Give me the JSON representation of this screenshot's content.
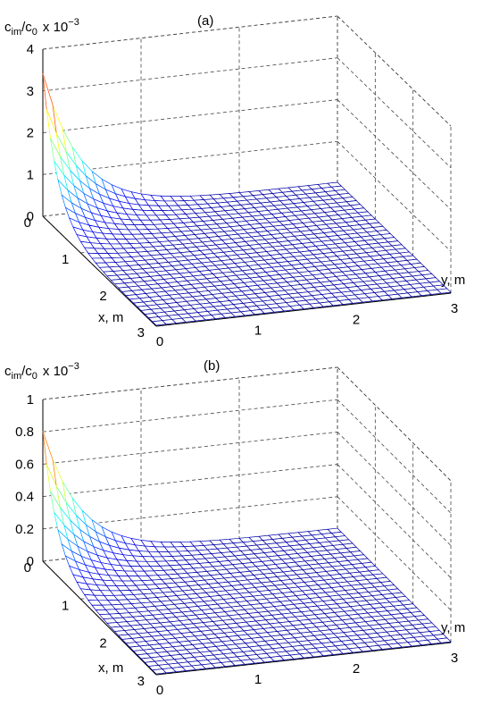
{
  "chart_data": [
    {
      "type": "surface",
      "panel_label": "(a)",
      "zlabel": "c",
      "zlabel_sub": "im",
      "zlabel_mid": "/c",
      "zlabel_sub2": "0",
      "zlabel_scale": "x 10",
      "zlabel_exp": "−3",
      "xlabel": "x, m",
      "ylabel": "y, m",
      "xlim": [
        0,
        3
      ],
      "ylim": [
        0,
        3
      ],
      "zlim": [
        0,
        4
      ],
      "x_ticks": [
        "0",
        "1",
        "2",
        "3"
      ],
      "y_ticks": [
        "0",
        "1",
        "2",
        "3"
      ],
      "z_ticks": [
        "0",
        "1",
        "2",
        "3",
        "4"
      ],
      "peak_value_at_origin": 3.4,
      "grid": true,
      "colormap": "jet",
      "mesh_resolution": 30
    },
    {
      "type": "surface",
      "panel_label": "(b)",
      "zlabel": "c",
      "zlabel_sub": "im",
      "zlabel_mid": "/c",
      "zlabel_sub2": "0",
      "zlabel_scale": "x 10",
      "zlabel_exp": "−3",
      "xlabel": "x, m",
      "ylabel": "y, m",
      "xlim": [
        0,
        3
      ],
      "ylim": [
        0,
        3
      ],
      "zlim": [
        0,
        1
      ],
      "x_ticks": [
        "0",
        "1",
        "2",
        "3"
      ],
      "y_ticks": [
        "0",
        "1",
        "2",
        "3"
      ],
      "z_ticks": [
        "0",
        "0.2",
        "0.4",
        "0.6",
        "0.8",
        "1"
      ],
      "peak_value_at_origin": 0.8,
      "grid": true,
      "colormap": "jet",
      "mesh_resolution": 30
    }
  ]
}
